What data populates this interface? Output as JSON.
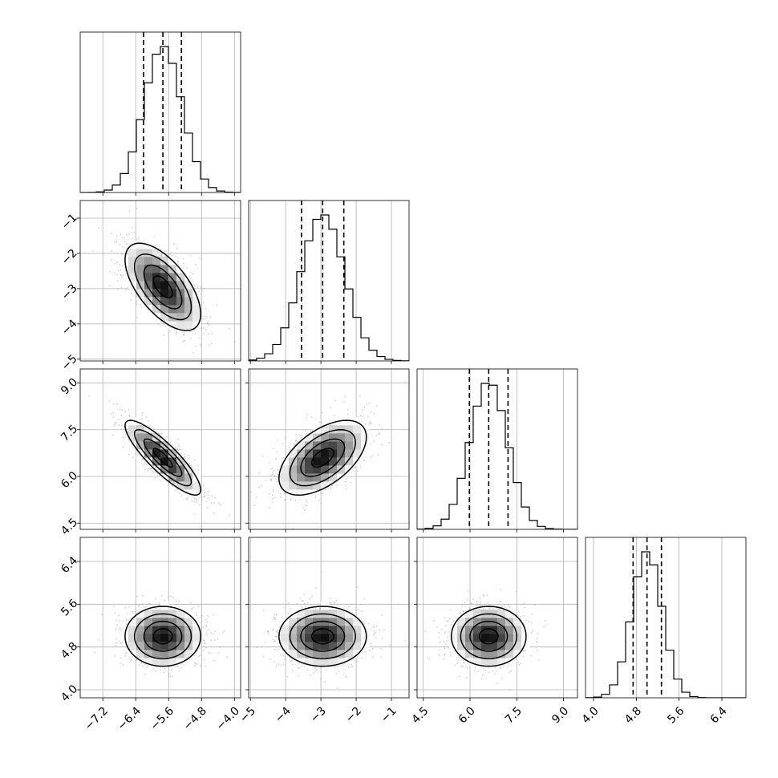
{
  "chart_data": {
    "type": "corner",
    "n_params": 4,
    "grid": true,
    "colors": {
      "line": "#000000",
      "grid": "#b0b0b0",
      "scatter": "#9a9a9a"
    },
    "params": [
      {
        "ticks": [
          -7.2,
          -6.4,
          -5.6,
          -4.8,
          -4.0
        ],
        "tick_labels": [
          "−7.2",
          "−6.4",
          "−5.6",
          "−4.8",
          "−4.0"
        ],
        "range": [
          -7.75,
          -3.85
        ],
        "quantiles": [
          -6.21,
          -5.74,
          -5.29
        ],
        "mean": -5.74,
        "sd": 0.46
      },
      {
        "ticks": [
          -5,
          -4,
          -3,
          -2,
          -1
        ],
        "tick_labels": [
          "−5",
          "−4",
          "−3",
          "−2",
          "−1"
        ],
        "range": [
          -5.05,
          -0.5
        ],
        "quantiles": [
          -3.55,
          -2.95,
          -2.35
        ],
        "mean": -2.95,
        "sd": 0.62
      },
      {
        "ticks": [
          4.5,
          6.0,
          7.5,
          9.0
        ],
        "tick_labels": [
          "4.5",
          "6.0",
          "7.5",
          "9.0"
        ],
        "range": [
          4.3,
          9.45
        ],
        "quantiles": [
          5.98,
          6.6,
          7.22
        ],
        "mean": 6.6,
        "sd": 0.6
      },
      {
        "ticks": [
          4.0,
          4.8,
          5.6,
          6.4
        ],
        "tick_labels": [
          "4.0",
          "4.8",
          "5.6",
          "6.4"
        ],
        "range": [
          3.85,
          6.85
        ],
        "quantiles": [
          4.74,
          5.0,
          5.27
        ],
        "mean": 5.0,
        "sd": 0.28
      }
    ],
    "correlations": [
      [
        1.0,
        -0.62,
        -0.86,
        0.0
      ],
      [
        -0.62,
        1.0,
        0.55,
        0.0
      ],
      [
        -0.86,
        0.55,
        1.0,
        0.0
      ],
      [
        0.0,
        0.0,
        0.0,
        1.0
      ]
    ],
    "contour_levels_sigma": [
      0.5,
      1.0,
      1.5,
      2.0
    ],
    "histogram_bins": 20
  }
}
